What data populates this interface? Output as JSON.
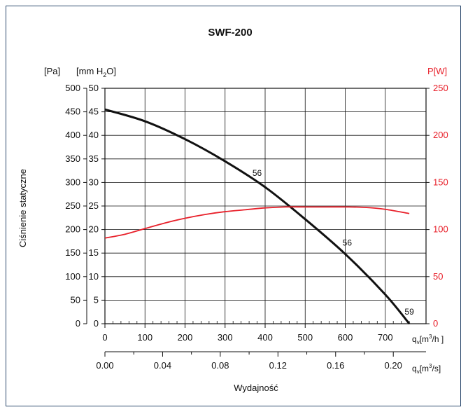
{
  "chart_data": {
    "type": "line",
    "title": "SWF-200",
    "ylabel": "Ciśnienie statyczne",
    "xlabel": "Wydajność",
    "left_axis": {
      "unit": "[Pa]",
      "ticks": [
        "500",
        "450",
        "400",
        "350",
        "300",
        "250",
        "200",
        "150",
        "100",
        "50",
        "0"
      ],
      "ylim": [
        0,
        500
      ]
    },
    "mid_axis": {
      "unit_main": "[mm H",
      "unit_sub": "2",
      "unit_tail": "O]",
      "ticks": [
        "50",
        "45",
        "40",
        "35",
        "30",
        "25",
        "20",
        "15",
        "10",
        "5",
        "0"
      ]
    },
    "right_axis": {
      "unit": "P[W]",
      "ticks": [
        "250",
        "200",
        "150",
        "100",
        "50",
        "0"
      ],
      "ylim": [
        0,
        250
      ],
      "color": "#e8202a"
    },
    "x_axis_m3h": {
      "unit_q": "q",
      "unit_v": "v",
      "unit_main": "[m",
      "unit_sup": "3",
      "unit_tail": "/h ]",
      "ticks": [
        "0",
        "100",
        "200",
        "300",
        "400",
        "500",
        "600",
        "700"
      ],
      "xlim": [
        0,
        770
      ]
    },
    "x_axis_m3s": {
      "unit_q": "q",
      "unit_v": "v",
      "unit_main": "[m",
      "unit_sup": "3",
      "unit_tail": "/s]",
      "ticks": [
        "0.00",
        "0.04",
        "0.08",
        "0.12",
        "0.16",
        "0.20"
      ]
    },
    "grid": true,
    "series": [
      {
        "role": "pressure",
        "color": "#111111",
        "x": [
          0,
          100,
          200,
          300,
          400,
          500,
          600,
          700,
          760
        ],
        "y": [
          455,
          430,
          392,
          345,
          290,
          222,
          148,
          62,
          0
        ]
      },
      {
        "role": "power",
        "color": "#e8202a",
        "x": [
          0,
          50,
          100,
          150,
          200,
          250,
          300,
          350,
          400,
          450,
          500,
          550,
          600,
          650,
          700,
          760
        ],
        "y": [
          91,
          95,
          101,
          107,
          112,
          116,
          119,
          121,
          123,
          124,
          124,
          124,
          124,
          123.5,
          121.5,
          117
        ]
      }
    ],
    "annotations": [
      {
        "text": "56",
        "x": 380,
        "y": 320
      },
      {
        "text": "56",
        "x": 605,
        "y": 172
      },
      {
        "text": "59",
        "x": 760,
        "y": 25
      }
    ]
  }
}
